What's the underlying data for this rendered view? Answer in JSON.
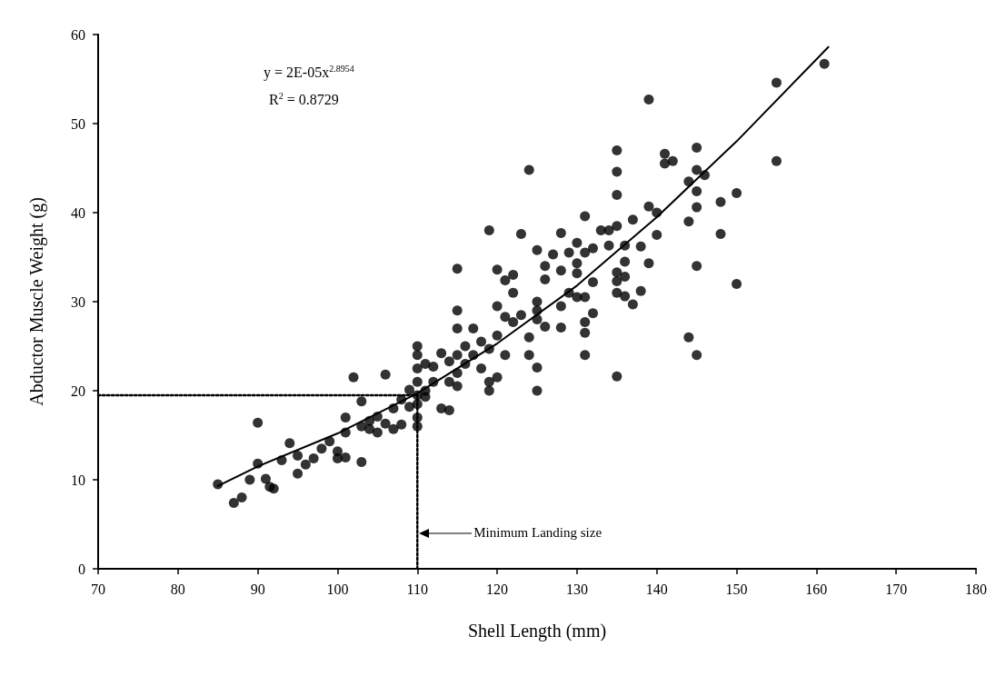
{
  "chart_data": {
    "type": "scatter",
    "xlabel": "Shell Length (mm)",
    "ylabel": "Abductor Muscle Weight (g)",
    "xlim": [
      70,
      180
    ],
    "xticks": [
      70,
      80,
      90,
      100,
      110,
      120,
      130,
      140,
      150,
      160,
      170,
      180
    ],
    "ylim": [
      0,
      60
    ],
    "yticks": [
      0,
      10,
      20,
      30,
      40,
      50,
      60
    ],
    "grid": false,
    "marker": "circle",
    "annotations": [
      "y = 2E-05x$^{2.8954}$",
      "R$^{2}$ = 0.8729",
      "Minimum Landing size"
    ],
    "series": [
      {
        "color": "#000000",
        "x": [
          85,
          87,
          88,
          89,
          90,
          90,
          91,
          91.5,
          92,
          93,
          94,
          95,
          95,
          96,
          97,
          98,
          99,
          100,
          100,
          101,
          101,
          102,
          101,
          103,
          103,
          103,
          104,
          104,
          105,
          105,
          106,
          106,
          107,
          107,
          108,
          108,
          109,
          109,
          110,
          110,
          110,
          110,
          110,
          110,
          110,
          110,
          111,
          111,
          111,
          112,
          112,
          113,
          113,
          114,
          114,
          114,
          115,
          115,
          115,
          115,
          115,
          115,
          116,
          116,
          117,
          117,
          118,
          118,
          119,
          119,
          119,
          119,
          120,
          120,
          120,
          120,
          121,
          121,
          121,
          122,
          122,
          122,
          123,
          123,
          124,
          124,
          124,
          125,
          125,
          125,
          125,
          125,
          125,
          126,
          126,
          126,
          127,
          128,
          128,
          128,
          128,
          129,
          129,
          130,
          130,
          130,
          130,
          131,
          131,
          131,
          131,
          131,
          131,
          132,
          132,
          132,
          133,
          134,
          134,
          135,
          135,
          135,
          135,
          135,
          135,
          135,
          135,
          136,
          136,
          136,
          136,
          137,
          137,
          138,
          138,
          139,
          139,
          139,
          140,
          140,
          141,
          141,
          142,
          144,
          144,
          144,
          145,
          145,
          145,
          145,
          145,
          145,
          146,
          148,
          148,
          150,
          150,
          155,
          155,
          161
        ],
        "values": [
          9.5,
          7.4,
          8,
          10,
          11.8,
          16.4,
          10.1,
          9.2,
          9,
          12.2,
          14.1,
          12.7,
          10.7,
          11.7,
          12.4,
          13.5,
          14.3,
          13.2,
          12.4,
          12.5,
          15.3,
          21.5,
          17,
          16,
          18.8,
          12,
          15.7,
          16.6,
          17.1,
          15.3,
          16.3,
          21.8,
          15.7,
          18,
          16.2,
          19,
          18.2,
          20.1,
          16,
          17,
          18.5,
          19.5,
          21,
          22.5,
          24,
          25,
          23,
          20,
          19.3,
          22.7,
          21,
          24.2,
          18,
          17.8,
          21,
          23.3,
          20.5,
          22,
          24,
          27,
          29,
          33.7,
          25,
          23,
          27,
          24,
          25.5,
          22.5,
          21,
          24.7,
          20,
          38,
          26.2,
          29.5,
          21.5,
          33.6,
          28.3,
          24,
          32.4,
          27.7,
          31,
          33,
          37.6,
          28.5,
          44.8,
          24,
          26,
          20,
          22.6,
          28,
          29,
          30,
          35.8,
          27.2,
          32.5,
          34,
          35.3,
          27.1,
          29.5,
          33.5,
          37.7,
          35.5,
          31,
          30.5,
          33.2,
          34.3,
          36.6,
          24,
          26.5,
          27.7,
          30.5,
          35.5,
          39.6,
          28.7,
          36,
          32.2,
          38,
          38,
          36.3,
          21.6,
          31,
          32.3,
          33.3,
          38.5,
          42,
          44.6,
          47,
          30.6,
          34.5,
          36.3,
          32.8,
          29.7,
          39.2,
          36.2,
          31.2,
          34.3,
          40.7,
          52.7,
          37.5,
          40,
          46.6,
          45.5,
          45.8,
          26,
          39,
          43.5,
          24,
          34,
          40.6,
          42.4,
          44.8,
          47.3,
          44.2,
          37.6,
          41.2,
          32,
          42.2,
          45.8,
          54.6,
          56.7
        ]
      },
      {
        "type": "line",
        "color": "#000000",
        "marker": "none",
        "line_style": "solid",
        "x": [
          85,
          90,
          100,
          110,
          120,
          130,
          140,
          150,
          161.5
        ],
        "values": [
          9.3,
          11.5,
          15.2,
          19.7,
          25.3,
          31.8,
          39.5,
          48,
          58.6
        ]
      },
      {
        "type": "line",
        "color": "#000000",
        "marker": "none",
        "line_style": "dotted",
        "x": [
          70,
          110,
          110
        ],
        "values": [
          19.5,
          19.5,
          0
        ]
      }
    ]
  }
}
